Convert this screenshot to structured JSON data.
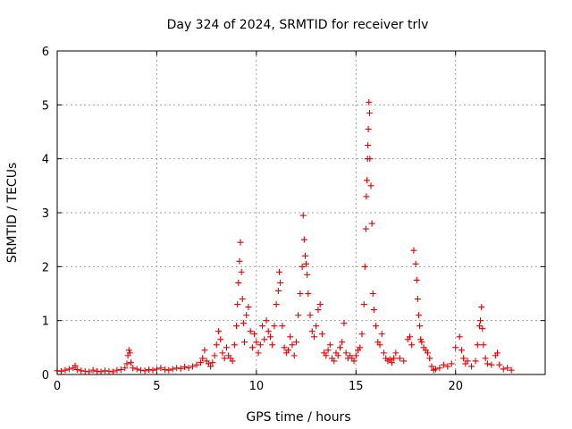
{
  "chart_data": {
    "type": "scatter",
    "title": "Day 324 of 2024, SRMTID for receiver trlv",
    "xlabel": "GPS time / hours",
    "ylabel": "SRMTID / TECUs",
    "xlim": [
      0,
      24.5
    ],
    "ylim": [
      0,
      6
    ],
    "xticks": [
      0,
      5,
      10,
      15,
      20
    ],
    "xtick_labels": [
      "0",
      "5",
      "10",
      "15",
      "20"
    ],
    "yticks": [
      0,
      1,
      2,
      3,
      4,
      5,
      6
    ],
    "ytick_labels": [
      "0",
      "1",
      "2",
      "3",
      "4",
      "5",
      "6"
    ],
    "grid": true,
    "marker": "+",
    "series": [
      {
        "name": "SRMTID",
        "color": "#e00000",
        "x": [
          0.0,
          0.2,
          0.4,
          0.6,
          0.8,
          0.9,
          1.0,
          1.2,
          1.4,
          1.6,
          1.8,
          2.0,
          2.2,
          2.4,
          2.6,
          2.8,
          3.0,
          3.2,
          3.4,
          3.5,
          3.55,
          3.6,
          3.65,
          3.7,
          3.8,
          4.0,
          4.2,
          4.4,
          4.6,
          4.8,
          5.0,
          5.2,
          5.4,
          5.6,
          5.8,
          6.0,
          6.2,
          6.4,
          6.6,
          6.8,
          7.0,
          7.2,
          7.3,
          7.4,
          7.5,
          7.6,
          7.7,
          7.8,
          7.9,
          8.0,
          8.1,
          8.2,
          8.3,
          8.4,
          8.5,
          8.6,
          8.7,
          8.8,
          8.9,
          9.0,
          9.05,
          9.1,
          9.15,
          9.2,
          9.25,
          9.3,
          9.35,
          9.4,
          9.5,
          9.6,
          9.7,
          9.8,
          9.9,
          10.0,
          10.1,
          10.2,
          10.3,
          10.4,
          10.5,
          10.6,
          10.7,
          10.8,
          10.9,
          11.0,
          11.1,
          11.15,
          11.2,
          11.3,
          11.4,
          11.5,
          11.6,
          11.7,
          11.8,
          11.9,
          12.0,
          12.1,
          12.2,
          12.3,
          12.35,
          12.4,
          12.45,
          12.5,
          12.55,
          12.6,
          12.7,
          12.8,
          12.9,
          13.0,
          13.1,
          13.2,
          13.3,
          13.4,
          13.5,
          13.6,
          13.7,
          13.8,
          13.9,
          14.0,
          14.1,
          14.2,
          14.3,
          14.4,
          14.5,
          14.6,
          14.7,
          14.8,
          14.9,
          15.0,
          15.1,
          15.2,
          15.3,
          15.4,
          15.45,
          15.5,
          15.52,
          15.55,
          15.58,
          15.6,
          15.62,
          15.65,
          15.68,
          15.7,
          15.75,
          15.8,
          15.85,
          15.9,
          16.0,
          16.1,
          16.2,
          16.3,
          16.4,
          16.5,
          16.6,
          16.7,
          16.8,
          16.9,
          17.0,
          17.2,
          17.4,
          17.6,
          17.7,
          17.8,
          17.9,
          18.0,
          18.05,
          18.1,
          18.15,
          18.2,
          18.25,
          18.3,
          18.4,
          18.5,
          18.6,
          18.7,
          18.8,
          18.9,
          19.0,
          19.2,
          19.4,
          19.6,
          19.8,
          20.0,
          20.2,
          20.3,
          20.4,
          20.5,
          20.6,
          20.8,
          21.0,
          21.1,
          21.2,
          21.25,
          21.3,
          21.35,
          21.4,
          21.5,
          21.6,
          21.8,
          22.0,
          22.1,
          22.2,
          22.4,
          22.6,
          22.8
        ],
        "y": [
          0.07,
          0.06,
          0.08,
          0.1,
          0.12,
          0.16,
          0.09,
          0.07,
          0.06,
          0.05,
          0.08,
          0.06,
          0.05,
          0.07,
          0.06,
          0.05,
          0.08,
          0.09,
          0.12,
          0.2,
          0.35,
          0.45,
          0.4,
          0.22,
          0.12,
          0.1,
          0.08,
          0.07,
          0.09,
          0.08,
          0.1,
          0.12,
          0.09,
          0.08,
          0.1,
          0.12,
          0.11,
          0.14,
          0.12,
          0.15,
          0.18,
          0.22,
          0.3,
          0.45,
          0.25,
          0.2,
          0.15,
          0.22,
          0.35,
          0.55,
          0.8,
          0.65,
          0.4,
          0.3,
          0.5,
          0.35,
          0.3,
          0.25,
          0.55,
          0.9,
          1.3,
          1.7,
          2.1,
          2.45,
          1.9,
          1.4,
          0.95,
          0.6,
          1.1,
          1.25,
          0.8,
          0.5,
          0.75,
          0.6,
          0.4,
          0.55,
          0.9,
          0.65,
          1.0,
          0.8,
          0.7,
          0.55,
          0.9,
          1.3,
          1.55,
          1.9,
          1.7,
          0.9,
          0.5,
          0.4,
          0.45,
          0.7,
          0.55,
          0.35,
          0.6,
          1.1,
          1.5,
          2.0,
          2.95,
          2.5,
          2.2,
          2.05,
          1.85,
          1.5,
          1.1,
          0.8,
          0.7,
          0.9,
          1.2,
          1.3,
          0.75,
          0.4,
          0.35,
          0.45,
          0.55,
          0.3,
          0.25,
          0.4,
          0.35,
          0.5,
          0.6,
          0.95,
          0.4,
          0.3,
          0.35,
          0.3,
          0.25,
          0.35,
          0.45,
          0.5,
          0.75,
          1.3,
          2.0,
          2.7,
          3.3,
          3.6,
          4.0,
          4.25,
          4.55,
          5.05,
          4.85,
          4.0,
          3.5,
          2.8,
          1.5,
          1.2,
          0.9,
          0.6,
          0.55,
          0.75,
          0.4,
          0.3,
          0.25,
          0.28,
          0.22,
          0.3,
          0.4,
          0.3,
          0.25,
          0.65,
          0.7,
          0.55,
          2.3,
          2.05,
          1.75,
          1.4,
          1.1,
          0.9,
          0.65,
          0.6,
          0.5,
          0.45,
          0.4,
          0.3,
          0.15,
          0.08,
          0.1,
          0.12,
          0.18,
          0.15,
          0.2,
          0.5,
          0.7,
          0.45,
          0.3,
          0.2,
          0.25,
          0.15,
          0.25,
          0.55,
          0.9,
          1.0,
          1.25,
          0.85,
          0.55,
          0.3,
          0.2,
          0.18,
          0.35,
          0.4,
          0.18,
          0.1,
          0.12,
          0.08
        ]
      }
    ]
  }
}
